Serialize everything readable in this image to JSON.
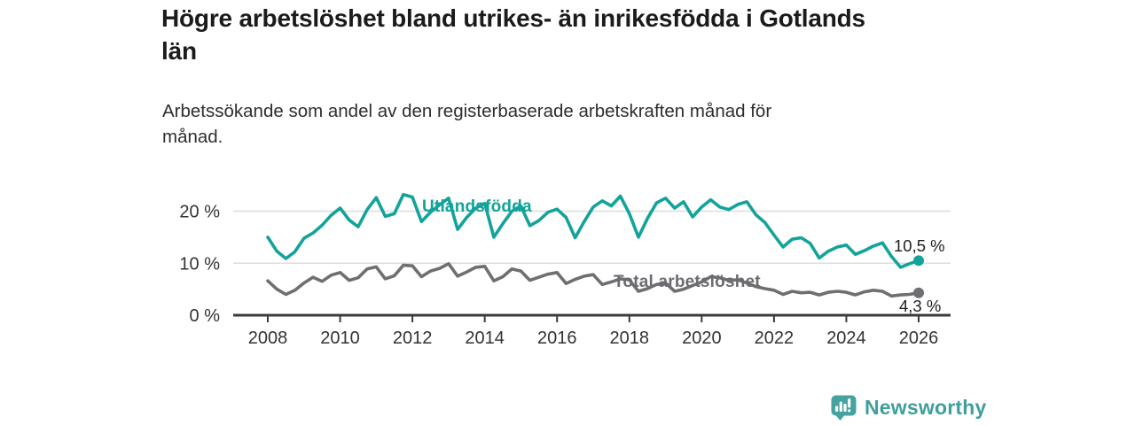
{
  "header": {
    "title_line1": "Högre arbetslöshet bland utrikes- än inrikesfödda i Gotlands",
    "title_line2": "län",
    "subtitle_line1": "Arbetssökande som andel av den registerbaserade arbetskraften månad för",
    "subtitle_line2": "månad."
  },
  "chart": {
    "series_labels": {
      "utlandsfodda": "Utlandsfödda",
      "total": "Total arbetslöshet"
    },
    "end_labels": {
      "utlandsfodda": "10,5 %",
      "total": "4,3 %"
    }
  },
  "chart_data": {
    "type": "line",
    "title": "Högre arbetslöshet bland utrikes- än inrikesfödda i Gotlands län",
    "subtitle": "Arbetssökande som andel av den registerbaserade arbetskraften månad för månad.",
    "xlabel": "",
    "ylabel": "",
    "x_range": [
      2008,
      2026
    ],
    "ylim": [
      0,
      24
    ],
    "grid": "horizontal",
    "legend_position": "inline-labels",
    "y_ticks": [
      {
        "label": "20 %",
        "value": 20
      },
      {
        "label": "10 %",
        "value": 10
      },
      {
        "label": "0 %",
        "value": 0
      }
    ],
    "x_ticks": [
      {
        "label": "2008",
        "value": 2008
      },
      {
        "label": "2010",
        "value": 2010
      },
      {
        "label": "2012",
        "value": 2012
      },
      {
        "label": "2014",
        "value": 2014
      },
      {
        "label": "2016",
        "value": 2016
      },
      {
        "label": "2018",
        "value": 2018
      },
      {
        "label": "2020",
        "value": 2020
      },
      {
        "label": "2022",
        "value": 2022
      },
      {
        "label": "2024",
        "value": 2024
      },
      {
        "label": "2026",
        "value": 2026
      }
    ],
    "x": [
      2008,
      2008.25,
      2008.5,
      2008.75,
      2009,
      2009.25,
      2009.5,
      2009.75,
      2010,
      2010.25,
      2010.5,
      2010.75,
      2011,
      2011.25,
      2011.5,
      2011.75,
      2012,
      2012.25,
      2012.5,
      2012.75,
      2013,
      2013.25,
      2013.5,
      2013.75,
      2014,
      2014.25,
      2014.5,
      2014.75,
      2015,
      2015.25,
      2015.5,
      2015.75,
      2016,
      2016.25,
      2016.5,
      2016.75,
      2017,
      2017.25,
      2017.5,
      2017.75,
      2018,
      2018.25,
      2018.5,
      2018.75,
      2019,
      2019.25,
      2019.5,
      2019.75,
      2020,
      2020.25,
      2020.5,
      2020.75,
      2021,
      2021.25,
      2021.5,
      2021.75,
      2022,
      2022.25,
      2022.5,
      2022.75,
      2023,
      2023.25,
      2023.5,
      2023.75,
      2024,
      2024.25,
      2024.5,
      2024.75,
      2025,
      2025.25,
      2025.5,
      2025.75,
      2026
    ],
    "series": [
      {
        "name": "Utlandsfödda",
        "color": "#12a39a",
        "end_value_label": "10,5 %",
        "values": [
          15.0,
          12.3,
          10.9,
          12.2,
          14.8,
          15.8,
          17.3,
          19.2,
          20.6,
          18.3,
          17.0,
          20.3,
          22.6,
          19.0,
          19.5,
          23.2,
          22.7,
          18.0,
          19.8,
          21.2,
          22.5,
          16.5,
          18.8,
          20.6,
          21.5,
          15.0,
          17.6,
          20.0,
          21.0,
          17.2,
          18.2,
          19.8,
          20.4,
          18.8,
          14.9,
          18.0,
          20.8,
          22.0,
          21.0,
          22.9,
          19.5,
          15.0,
          18.6,
          21.6,
          22.5,
          20.6,
          21.8,
          18.9,
          20.8,
          22.2,
          20.8,
          20.3,
          21.3,
          21.8,
          19.3,
          17.8,
          15.4,
          13.1,
          14.6,
          14.9,
          13.8,
          11.0,
          12.3,
          13.1,
          13.5,
          11.7,
          12.4,
          13.3,
          13.9,
          11.3,
          9.2,
          9.9,
          10.5
        ]
      },
      {
        "name": "Total arbetslöshet",
        "color": "#6f6f73",
        "end_value_label": "4,3 %",
        "values": [
          6.6,
          5.0,
          4.0,
          4.8,
          6.2,
          7.3,
          6.5,
          7.7,
          8.2,
          6.7,
          7.2,
          8.9,
          9.3,
          7.0,
          7.6,
          9.6,
          9.5,
          7.4,
          8.5,
          9.0,
          9.9,
          7.5,
          8.3,
          9.2,
          9.4,
          6.6,
          7.4,
          8.9,
          8.5,
          6.7,
          7.3,
          7.9,
          8.2,
          6.1,
          6.9,
          7.5,
          7.8,
          5.9,
          6.4,
          7.0,
          6.8,
          4.6,
          5.1,
          5.9,
          6.2,
          4.6,
          5.0,
          5.7,
          6.4,
          7.4,
          7.2,
          6.7,
          6.8,
          6.2,
          5.5,
          5.1,
          4.8,
          4.0,
          4.6,
          4.3,
          4.4,
          3.9,
          4.4,
          4.6,
          4.4,
          3.9,
          4.5,
          4.8,
          4.6,
          3.7,
          3.9,
          4.0,
          4.3
        ]
      }
    ],
    "colors": {
      "axis": "#3a3a3a",
      "gridline": "#dcdcdc",
      "tick_text": "#333333",
      "value_label_text": "#1f1f1f"
    }
  },
  "footer": {
    "brand": "Newsworthy",
    "brand_color": "#3f9f9c"
  }
}
